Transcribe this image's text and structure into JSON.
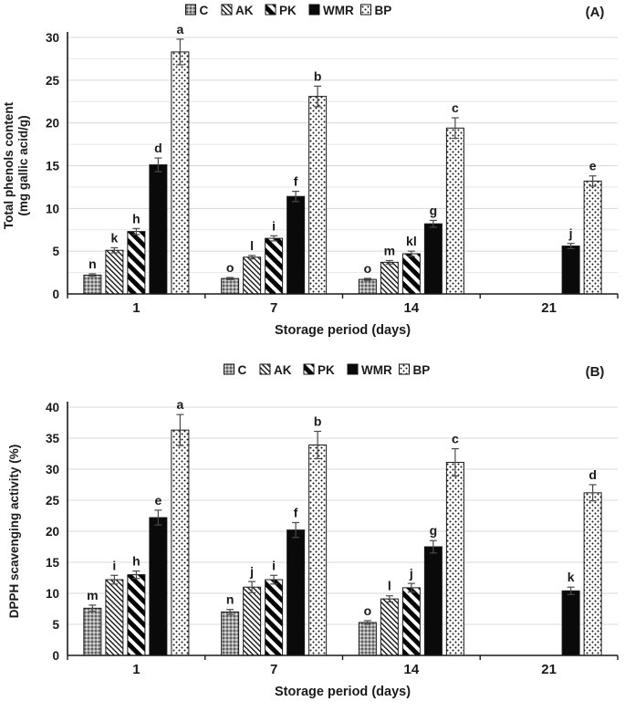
{
  "figure_title": "",
  "colors": {
    "background": "#ffffff",
    "bar_outline": "#1a1a1a",
    "solid_bar": "#0a0a0a",
    "grid_major": "#d8d8d8",
    "grid_minor": "#e7e7e7",
    "axis": "#1a1a1a",
    "error_bar": "#4a4a4a",
    "gray_fill": "#a0a0a0"
  },
  "legend_items": [
    {
      "label": "C",
      "pattern": "gray-check"
    },
    {
      "label": "AK",
      "pattern": "thin-diagonal"
    },
    {
      "label": "PK",
      "pattern": "thick-diagonal"
    },
    {
      "label": "WMR",
      "pattern": "solid-black"
    },
    {
      "label": "BP",
      "pattern": "dots"
    }
  ],
  "chart_data": [
    {
      "type": "bar",
      "panel_label": "(A)",
      "xlabel": "Storage period (days)",
      "ylabel": "Total phenols content (mg gallic acid/g)",
      "ylabel_lines": [
        "Total phenols content",
        "(mg gallic acid/g)"
      ],
      "categories": [
        "1",
        "7",
        "14",
        "21"
      ],
      "ylim": [
        0,
        30
      ],
      "ytick_step": 5,
      "minor_grid_step": 2.5,
      "yticks": [
        "0",
        "5",
        "10",
        "15",
        "20",
        "25",
        "30"
      ],
      "legend_position": "top-center",
      "grid": true,
      "series": [
        {
          "name": "C",
          "pattern": "gray-check",
          "values": [
            2.2,
            1.8,
            1.7,
            null
          ],
          "errors": [
            0.15,
            0.12,
            0.12,
            null
          ],
          "letters": [
            "n",
            "o",
            "o",
            ""
          ]
        },
        {
          "name": "AK",
          "pattern": "thin-diagonal",
          "values": [
            5.1,
            4.3,
            3.7,
            null
          ],
          "errors": [
            0.3,
            0.2,
            0.2,
            null
          ],
          "letters": [
            "k",
            "l",
            "m",
            ""
          ]
        },
        {
          "name": "PK",
          "pattern": "thick-diagonal",
          "values": [
            7.3,
            6.5,
            4.7,
            null
          ],
          "errors": [
            0.35,
            0.3,
            0.3,
            null
          ],
          "letters": [
            "h",
            "i",
            "kl",
            ""
          ]
        },
        {
          "name": "WMR",
          "pattern": "solid-black",
          "values": [
            15.1,
            11.4,
            8.2,
            5.6
          ],
          "errors": [
            0.8,
            0.6,
            0.4,
            0.3
          ],
          "letters": [
            "d",
            "f",
            "g",
            "j"
          ]
        },
        {
          "name": "BP",
          "pattern": "dots",
          "values": [
            28.3,
            23.1,
            19.4,
            13.2
          ],
          "errors": [
            1.5,
            1.2,
            1.2,
            0.6
          ],
          "letters": [
            "a",
            "b",
            "c",
            "e"
          ]
        }
      ]
    },
    {
      "type": "bar",
      "panel_label": "(B)",
      "xlabel": "Storage period (days)",
      "ylabel": "DPPH scavenging activity (%)",
      "ylabel_lines": [
        "DPPH scavenging activity (%)"
      ],
      "categories": [
        "1",
        "7",
        "14",
        "21"
      ],
      "ylim": [
        0,
        40
      ],
      "ytick_step": 5,
      "minor_grid_step": 5,
      "yticks": [
        "0",
        "5",
        "10",
        "15",
        "20",
        "25",
        "30",
        "35",
        "40"
      ],
      "legend_position": "top-center",
      "grid": true,
      "series": [
        {
          "name": "C",
          "pattern": "gray-check",
          "values": [
            7.6,
            7.0,
            5.3,
            null
          ],
          "errors": [
            0.5,
            0.4,
            0.3,
            null
          ],
          "letters": [
            "m",
            "n",
            "o",
            ""
          ]
        },
        {
          "name": "AK",
          "pattern": "thin-diagonal",
          "values": [
            12.2,
            11.0,
            9.1,
            null
          ],
          "errors": [
            0.7,
            0.9,
            0.5,
            null
          ],
          "letters": [
            "i",
            "j",
            "l",
            ""
          ]
        },
        {
          "name": "PK",
          "pattern": "thick-diagonal",
          "values": [
            13.0,
            12.2,
            10.9,
            null
          ],
          "errors": [
            0.6,
            0.7,
            0.7,
            null
          ],
          "letters": [
            "h",
            "i",
            "j",
            ""
          ]
        },
        {
          "name": "WMR",
          "pattern": "solid-black",
          "values": [
            22.2,
            20.2,
            17.5,
            10.4
          ],
          "errors": [
            1.2,
            1.2,
            1.0,
            0.6
          ],
          "letters": [
            "e",
            "f",
            "g",
            "k"
          ]
        },
        {
          "name": "BP",
          "pattern": "dots",
          "values": [
            36.3,
            33.9,
            31.1,
            26.2
          ],
          "errors": [
            2.5,
            2.2,
            2.2,
            1.3
          ],
          "letters": [
            "a",
            "b",
            "c",
            "d"
          ]
        }
      ]
    }
  ]
}
